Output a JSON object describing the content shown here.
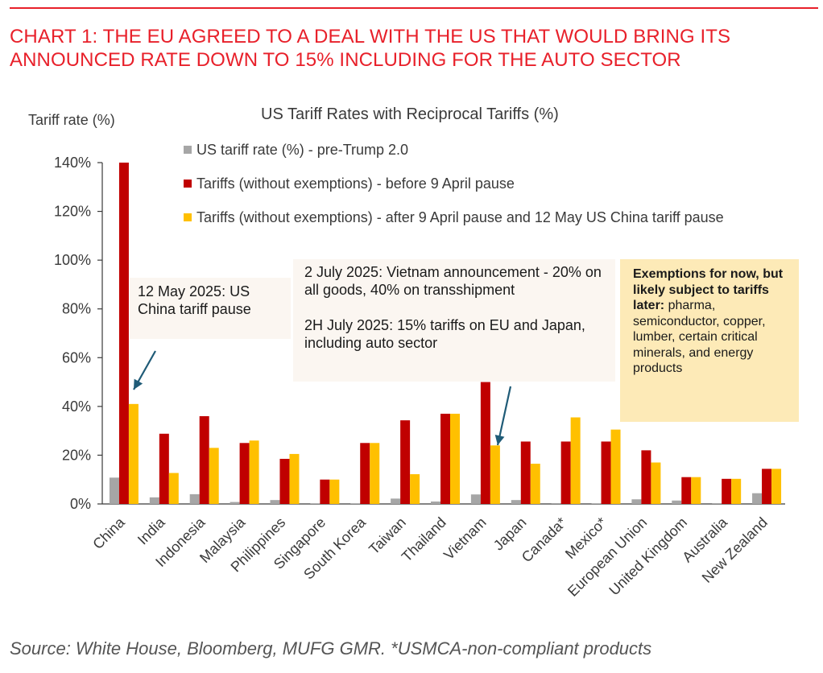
{
  "headline": "CHART 1: THE EU AGREED TO A DEAL WITH THE US THAT WOULD BRING ITS ANNOUNCED RATE DOWN TO 15% INCLUDING FOR THE AUTO SECTOR",
  "source": "Source: White House, Bloomberg, MUFG GMR. *USMCA-non-compliant products",
  "colors": {
    "headline": "#e8202a",
    "pre": "#a6a6a6",
    "before": "#c00000",
    "after": "#ffc000",
    "axis": "#3a3a3a"
  },
  "annotations": {
    "china_pause": "12 May 2025: US China tariff pause",
    "vietnam": "2 July 2025: Vietnam announcement - 20% on all goods, 40% on transshipment",
    "eu_japan": "2H July 2025: 15% tariffs on EU and Japan, including auto sector",
    "exemptions_bold": "Exemptions for now, but likely subject to tariffs later:",
    "exemptions_rest": " pharma, semiconductor, copper, lumber, certain critical minerals, and energy products"
  },
  "chart_data": {
    "type": "bar",
    "title": "US Tariff Rates with Reciprocal Tariffs (%)",
    "ylabel": "Tariff rate (%)",
    "xlabel": "",
    "ylim": [
      0,
      140
    ],
    "yticks": [
      0,
      20,
      40,
      60,
      80,
      100,
      120,
      140
    ],
    "ytick_labels": [
      "0%",
      "20%",
      "40%",
      "60%",
      "80%",
      "100%",
      "120%",
      "140%"
    ],
    "grid": false,
    "legend_position": "top",
    "categories": [
      "China",
      "India",
      "Indonesia",
      "Malaysia",
      "Philippines",
      "Singapore",
      "South Korea",
      "Taiwan",
      "Thailand",
      "Vietnam",
      "Japan",
      "Canada*",
      "Mexico*",
      "European Union",
      "United Kingdom",
      "Australia",
      "New Zealand"
    ],
    "series": [
      {
        "name": "US tariff rate (%) - pre-Trump 2.0",
        "color": "#a6a6a6",
        "values": [
          10.8,
          2.7,
          4.0,
          0.8,
          1.6,
          0.2,
          0.2,
          2.2,
          1.0,
          3.9,
          1.6,
          0.1,
          0.2,
          1.9,
          1.4,
          0.3,
          4.4
        ]
      },
      {
        "name": "Tariffs (without exemptions) - before 9 April pause",
        "color": "#c00000",
        "values": [
          140,
          28.8,
          36,
          25,
          18.5,
          10,
          25,
          34.3,
          37,
          50,
          25.6,
          25.6,
          25.6,
          22,
          11,
          10.3,
          14.4
        ]
      },
      {
        "name": "Tariffs (without exemptions) - after 9 April pause and 12 May US China tariff pause",
        "color": "#ffc000",
        "values": [
          41,
          12.7,
          23,
          26,
          20.5,
          10,
          25,
          12.2,
          37,
          24,
          16.5,
          35.5,
          30.5,
          17,
          11,
          10.3,
          14.4
        ]
      }
    ]
  }
}
